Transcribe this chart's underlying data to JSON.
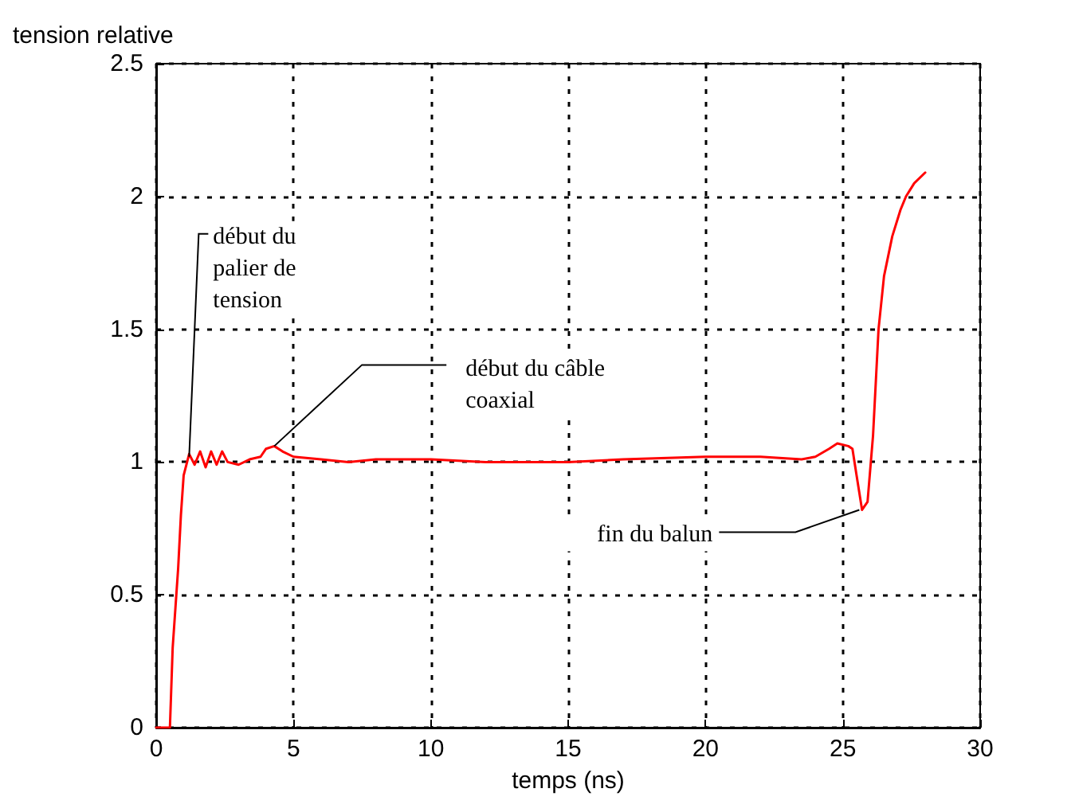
{
  "chart_data": {
    "type": "line",
    "ylabel": "tension relative",
    "xlabel": "temps (ns)",
    "xlim": [
      0,
      30
    ],
    "xticks": [
      0,
      5,
      10,
      15,
      20,
      25,
      30
    ],
    "ylim": [
      0,
      2.5
    ],
    "yticks": [
      0,
      0.5,
      1,
      1.5,
      2,
      2.5
    ],
    "grid": true,
    "marker": "none",
    "line_style": "solid",
    "series": [
      {
        "color": "#ff0000",
        "x": [
          0,
          0.5,
          0.6,
          0.7,
          0.8,
          0.9,
          1.0,
          1.2,
          1.4,
          1.6,
          1.8,
          2.0,
          2.2,
          2.4,
          2.6,
          3.0,
          3.4,
          3.8,
          4.0,
          4.3,
          4.6,
          5,
          6,
          7,
          8,
          10,
          12,
          15,
          17,
          20,
          22,
          23.5,
          24,
          24.5,
          24.8,
          25.2,
          25.35,
          25.5,
          25.7,
          25.9,
          26.1,
          26.3,
          26.5,
          26.8,
          27.1,
          27.3,
          27.6,
          28
        ],
        "values": [
          0,
          0,
          0.3,
          0.45,
          0.6,
          0.8,
          0.95,
          1.03,
          0.99,
          1.04,
          0.98,
          1.04,
          0.99,
          1.04,
          1.0,
          0.99,
          1.01,
          1.02,
          1.05,
          1.06,
          1.04,
          1.02,
          1.01,
          1.0,
          1.01,
          1.01,
          1.0,
          1.0,
          1.01,
          1.02,
          1.02,
          1.01,
          1.02,
          1.05,
          1.07,
          1.06,
          1.05,
          0.95,
          0.82,
          0.85,
          1.1,
          1.5,
          1.7,
          1.85,
          1.95,
          2.0,
          2.05,
          2.09
        ]
      }
    ],
    "annotations": [
      {
        "text": "début du palier de tension",
        "x": 1.2,
        "y": 1.02
      },
      {
        "text": "début du câble coaxial",
        "x": 4.3,
        "y": 1.06
      },
      {
        "text": "fin du balun",
        "x": 25.6,
        "y": 0.82
      }
    ]
  }
}
